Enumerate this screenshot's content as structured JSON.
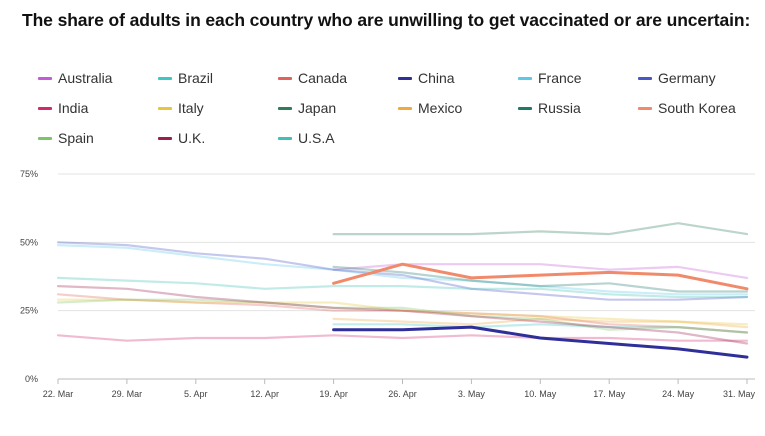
{
  "chart_data": {
    "type": "line",
    "title": "The share of adults in each country who are unwilling to get vaccinated or are uncertain:",
    "xlabel": "",
    "ylabel": "",
    "x": [
      "22. Mar",
      "29. Mar",
      "5. Apr",
      "12. Apr",
      "19. Apr",
      "26. Apr",
      "3. May",
      "10. May",
      "17. May",
      "24. May",
      "31. May"
    ],
    "y_ticks": [
      "0%",
      "25%",
      "50%",
      "75%"
    ],
    "ylim": [
      0,
      75
    ],
    "grid": "horizontal",
    "legend_position": "top",
    "highlighted": [
      "China",
      "South Korea"
    ],
    "series": [
      {
        "name": "Australia",
        "color": "#c45bd6",
        "values": [
          null,
          null,
          null,
          null,
          40,
          42,
          42,
          42,
          40,
          41,
          37
        ]
      },
      {
        "name": "Brazil",
        "color": "#3cc7c4",
        "values": [
          null,
          null,
          null,
          null,
          20,
          20,
          19,
          20,
          19,
          19,
          17
        ]
      },
      {
        "name": "Canada",
        "color": "#e0625a",
        "values": [
          31,
          29,
          28,
          27,
          25,
          25,
          24,
          23,
          20,
          19,
          17
        ]
      },
      {
        "name": "China",
        "color": "#2f2f9a",
        "values": [
          null,
          null,
          null,
          null,
          18,
          18,
          19,
          15,
          13,
          11,
          8
        ]
      },
      {
        "name": "France",
        "color": "#5cc8e6",
        "values": [
          49,
          48,
          45,
          42,
          40,
          37,
          36,
          34,
          32,
          31,
          31
        ]
      },
      {
        "name": "Germany",
        "color": "#4a55c8",
        "values": [
          50,
          49,
          46,
          44,
          40,
          38,
          33,
          31,
          29,
          29,
          30
        ]
      },
      {
        "name": "India",
        "color": "#cf2a6e",
        "values": [
          16,
          14,
          15,
          15,
          16,
          15,
          16,
          15,
          15,
          14,
          14
        ]
      },
      {
        "name": "Italy",
        "color": "#e6c63c",
        "values": [
          29,
          29,
          28,
          28,
          28,
          25,
          24,
          23,
          22,
          21,
          20
        ]
      },
      {
        "name": "Japan",
        "color": "#2e7d5b",
        "values": [
          null,
          null,
          null,
          null,
          53,
          53,
          53,
          54,
          53,
          57,
          53
        ]
      },
      {
        "name": "Mexico",
        "color": "#f0a93a",
        "values": [
          null,
          null,
          null,
          null,
          22,
          21,
          20,
          22,
          21,
          21,
          19
        ]
      },
      {
        "name": "Russia",
        "color": "#1f7a6c",
        "values": [
          null,
          null,
          null,
          null,
          41,
          39,
          36,
          34,
          35,
          32,
          32
        ]
      },
      {
        "name": "South Korea",
        "color": "#f08a6a",
        "values": [
          null,
          null,
          null,
          null,
          35,
          42,
          37,
          38,
          39,
          38,
          33
        ]
      },
      {
        "name": "Spain",
        "color": "#7cc46a",
        "values": [
          28,
          29,
          29,
          28,
          26,
          26,
          23,
          22,
          18,
          19,
          17
        ]
      },
      {
        "name": "U.K.",
        "color": "#9a1f4e",
        "values": [
          34,
          33,
          30,
          28,
          26,
          25,
          23,
          21,
          19,
          17,
          13
        ]
      },
      {
        "name": "U.S.A",
        "color": "#3fc0b4",
        "values": [
          37,
          36,
          35,
          33,
          34,
          34,
          33,
          33,
          31,
          30,
          30
        ]
      }
    ]
  }
}
